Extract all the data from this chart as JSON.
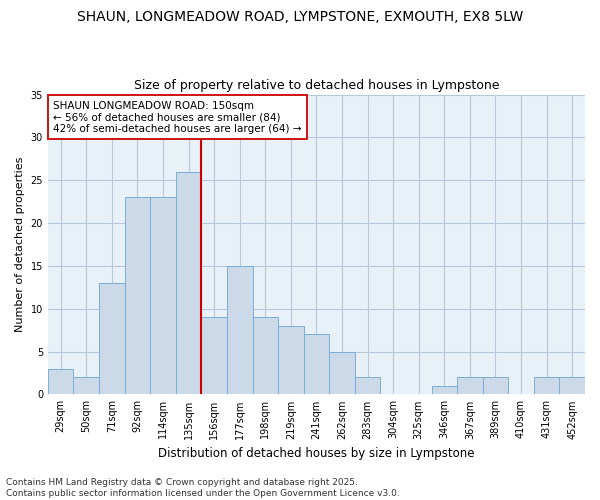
{
  "title": "SHAUN, LONGMEADOW ROAD, LYMPSTONE, EXMOUTH, EX8 5LW",
  "subtitle": "Size of property relative to detached houses in Lympstone",
  "xlabel": "Distribution of detached houses by size in Lympstone",
  "ylabel": "Number of detached properties",
  "categories": [
    "29sqm",
    "50sqm",
    "71sqm",
    "92sqm",
    "114sqm",
    "135sqm",
    "156sqm",
    "177sqm",
    "198sqm",
    "219sqm",
    "241sqm",
    "262sqm",
    "283sqm",
    "304sqm",
    "325sqm",
    "346sqm",
    "367sqm",
    "389sqm",
    "410sqm",
    "431sqm",
    "452sqm"
  ],
  "values": [
    3,
    2,
    13,
    23,
    23,
    26,
    9,
    15,
    9,
    8,
    7,
    5,
    2,
    0,
    0,
    1,
    2,
    2,
    0,
    2,
    2
  ],
  "bar_color": "#ccd9e8",
  "bar_edge_color": "#7aaed6",
  "reference_line_x": 5.5,
  "reference_line_color": "#cc0000",
  "annotation_text": "SHAUN LONGMEADOW ROAD: 150sqm\n← 56% of detached houses are smaller (84)\n42% of semi-detached houses are larger (64) →",
  "annotation_box_color": "#cc0000",
  "annotation_bg": "white",
  "ylim": [
    0,
    35
  ],
  "yticks": [
    0,
    5,
    10,
    15,
    20,
    25,
    30,
    35
  ],
  "grid_color": "#b8c8dc",
  "background_color": "#e8f0f8",
  "footer_text": "Contains HM Land Registry data © Crown copyright and database right 2025.\nContains public sector information licensed under the Open Government Licence v3.0.",
  "title_fontsize": 10,
  "subtitle_fontsize": 9,
  "xlabel_fontsize": 8.5,
  "ylabel_fontsize": 8,
  "tick_fontsize": 7,
  "annotation_fontsize": 7.5,
  "footer_fontsize": 6.5
}
